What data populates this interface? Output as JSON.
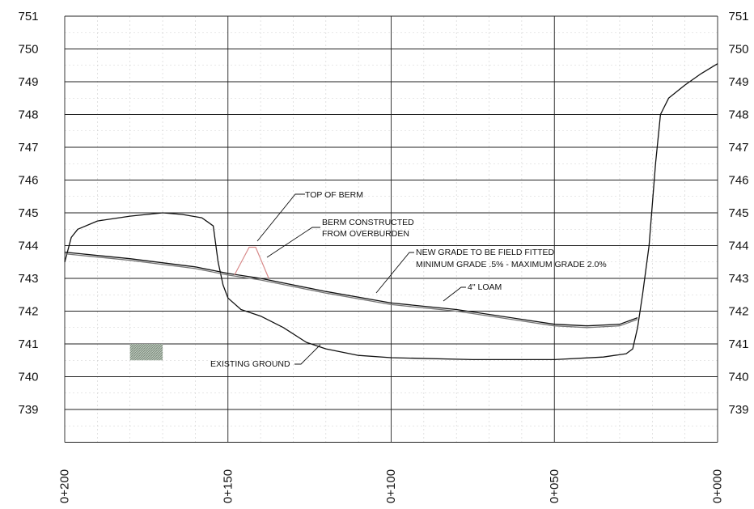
{
  "chart_data": {
    "type": "line",
    "title": "",
    "xlabel": "",
    "ylabel": "",
    "x_axis": {
      "reversed": true,
      "range": [
        0,
        200
      ],
      "tick_labels": [
        "0+200",
        "0+150",
        "0+100",
        "0+050",
        "0+000"
      ],
      "tick_values": [
        200,
        150,
        100,
        50,
        0
      ]
    },
    "y_axis": {
      "range": [
        738,
        751
      ],
      "tick_labels": [
        "751",
        "750",
        "749",
        "748",
        "747",
        "746",
        "745",
        "744",
        "743",
        "742",
        "741",
        "740",
        "739"
      ],
      "tick_values": [
        751,
        750,
        749,
        748,
        747,
        746,
        745,
        744,
        743,
        742,
        741,
        740,
        739
      ],
      "label_color_750": "#2e7d32"
    },
    "grid": true,
    "series": [
      {
        "key": "existing_ground",
        "color": "#111111",
        "points": [
          [
            200,
            743.5
          ],
          [
            198,
            744.25
          ],
          [
            196,
            744.5
          ],
          [
            190,
            744.75
          ],
          [
            180,
            744.9
          ],
          [
            170,
            745.0
          ],
          [
            164,
            744.95
          ],
          [
            158,
            744.85
          ],
          [
            154.5,
            744.6
          ],
          [
            153,
            743.5
          ],
          [
            151.5,
            742.8
          ],
          [
            150,
            742.4
          ],
          [
            146,
            742.05
          ],
          [
            140,
            741.85
          ],
          [
            133,
            741.5
          ],
          [
            126,
            741.05
          ],
          [
            120,
            740.85
          ],
          [
            110,
            740.65
          ],
          [
            100,
            740.58
          ],
          [
            75,
            740.52
          ],
          [
            50,
            740.52
          ],
          [
            35,
            740.6
          ],
          [
            28,
            740.7
          ],
          [
            26,
            740.85
          ],
          [
            24.5,
            741.5
          ],
          [
            23,
            742.5
          ],
          [
            21,
            744.0
          ],
          [
            19,
            746.5
          ],
          [
            17.5,
            748.0
          ],
          [
            15,
            748.5
          ],
          [
            10,
            748.9
          ],
          [
            5,
            749.25
          ],
          [
            0,
            749.55
          ]
        ]
      },
      {
        "key": "new_grade",
        "color": "#111111",
        "points": [
          [
            200,
            743.8
          ],
          [
            180,
            743.6
          ],
          [
            160,
            743.35
          ],
          [
            150,
            743.15
          ],
          [
            140,
            743.0
          ],
          [
            120,
            742.6
          ],
          [
            100,
            742.25
          ],
          [
            80,
            742.05
          ],
          [
            60,
            741.75
          ],
          [
            50,
            741.6
          ],
          [
            40,
            741.55
          ],
          [
            30,
            741.6
          ],
          [
            24.5,
            741.8
          ]
        ]
      },
      {
        "key": "loam_4in",
        "color": "#777777",
        "points": [
          [
            200,
            743.75
          ],
          [
            180,
            743.55
          ],
          [
            160,
            743.3
          ],
          [
            150,
            743.1
          ],
          [
            140,
            742.95
          ],
          [
            120,
            742.55
          ],
          [
            100,
            742.2
          ],
          [
            80,
            742.0
          ],
          [
            60,
            741.7
          ],
          [
            50,
            741.55
          ],
          [
            40,
            741.5
          ],
          [
            30,
            741.55
          ],
          [
            24.5,
            741.75
          ]
        ]
      },
      {
        "key": "berm",
        "color": "#d88a8a",
        "points": [
          [
            148,
            743.1
          ],
          [
            143.5,
            743.95
          ],
          [
            141.5,
            743.95
          ],
          [
            137.5,
            743.0
          ]
        ]
      }
    ],
    "hatched_box": {
      "x": [
        170,
        180
      ],
      "y": [
        740.5,
        741.0
      ],
      "color": "#7a8a7a"
    },
    "annotations": {
      "top_of_berm": "TOP OF BERM",
      "berm_line1": "BERM CONSTRUCTED",
      "berm_line2": "FROM OVERBURDEN",
      "new_grade_line1": "NEW GRADE TO BE FIELD FITTED",
      "new_grade_line2": "MINIMUM GRADE .5% - MAXIMUM GRADE 2.0%",
      "loam": "4\" LOAM",
      "existing_ground": "EXISTING GROUND"
    }
  }
}
